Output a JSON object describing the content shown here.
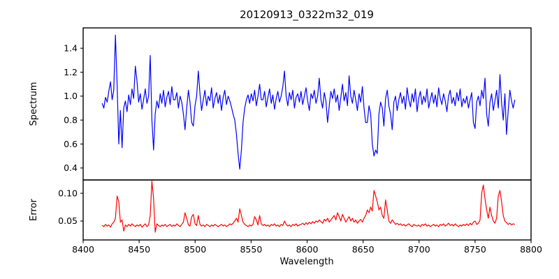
{
  "figure": {
    "title": "20120913_0322m32_019",
    "background": "#ffffff",
    "frame_color": "#000000"
  },
  "chart_data": {
    "type": "line",
    "title": "20120913_0322m32_019",
    "x_label": "Wavelength",
    "x_lim": [
      8400,
      8800
    ],
    "x_ticks": [
      8400,
      8450,
      8500,
      8550,
      8600,
      8650,
      8700,
      8750,
      8800
    ],
    "x_tick_labels": [
      "8400",
      "8450",
      "8500",
      "8550",
      "8600",
      "8650",
      "8700",
      "8750",
      "8800"
    ],
    "x_start": 8417,
    "x_step": 1.48,
    "grid": false,
    "legend": false,
    "panels": [
      {
        "name": "spectrum",
        "y_label": "Spectrum",
        "y_lim": [
          0.3,
          1.57
        ],
        "y_ticks": [
          0.4,
          0.6,
          0.8,
          1.0,
          1.2,
          1.4
        ],
        "y_tick_labels": [
          "0.4",
          "0.6",
          "0.8",
          "1.0",
          "1.2",
          "1.4"
        ],
        "color": "#0000ff",
        "values": [
          0.94,
          0.9,
          0.99,
          0.95,
          1.04,
          1.12,
          0.97,
          1.05,
          1.51,
          1.1,
          0.6,
          0.88,
          0.57,
          0.9,
          0.96,
          0.87,
          1.01,
          0.93,
          1.06,
          0.98,
          1.25,
          1.13,
          0.95,
          1.02,
          0.89,
          0.97,
          1.06,
          0.94,
          1.0,
          1.34,
          0.8,
          0.55,
          0.85,
          0.96,
          0.9,
          1.02,
          0.94,
          1.05,
          0.91,
          0.99,
          1.04,
          0.93,
          1.08,
          0.97,
          0.97,
          1.03,
          0.9,
          1.0,
          0.95,
          0.85,
          0.72,
          0.9,
          1.05,
          0.95,
          0.78,
          0.75,
          0.92,
          1.0,
          1.21,
          1.02,
          0.88,
          0.97,
          1.05,
          0.92,
          1.0,
          0.96,
          1.07,
          0.9,
          0.98,
          1.03,
          0.94,
          1.01,
          0.88,
          0.99,
          1.05,
          0.93,
          1.0,
          0.96,
          0.91,
          0.85,
          0.8,
          0.68,
          0.52,
          0.39,
          0.55,
          0.78,
          0.9,
          0.97,
          1.01,
          0.94,
          1.02,
          0.96,
          1.05,
          0.92,
          1.0,
          1.1,
          0.97,
          0.97,
          1.04,
          0.91,
          0.99,
          1.06,
          0.94,
          1.01,
          0.89,
          0.98,
          1.04,
          0.95,
          1.0,
          1.08,
          1.21,
          1.0,
          0.92,
          1.03,
          0.97,
          1.05,
          0.9,
          0.99,
          1.02,
          0.95,
          1.04,
          0.93,
          1.0,
          1.07,
          0.96,
          0.88,
          1.02,
          0.98,
          1.05,
          0.94,
          1.0,
          1.15,
          0.97,
          0.9,
          1.03,
          0.96,
          0.78,
          0.92,
          1.04,
          0.98,
          1.06,
          0.95,
          1.01,
          0.88,
          0.99,
          1.1,
          0.96,
          1.03,
          0.92,
          1.17,
          1.0,
          0.94,
          1.05,
          0.97,
          0.88,
          1.02,
          0.95,
          1.08,
          0.9,
          0.78,
          0.78,
          0.92,
          0.85,
          0.6,
          0.5,
          0.55,
          0.52,
          0.85,
          0.95,
          0.9,
          0.75,
          0.98,
          1.05,
          0.92,
          0.85,
          0.72,
          0.95,
          1.0,
          0.88,
          0.97,
          1.03,
          0.94,
          1.0,
          0.89,
          1.07,
          0.97,
          0.91,
          1.02,
          0.95,
          1.06,
          0.87,
          0.98,
          1.04,
          0.93,
          1.0,
          0.95,
          1.06,
          0.9,
          0.97,
          1.03,
          0.94,
          1.01,
          0.91,
          1.07,
          0.98,
          0.93,
          1.02,
          0.96,
          0.87,
          1.0,
          1.05,
          0.94,
          0.99,
          0.92,
          1.03,
          0.96,
          1.06,
          0.91,
          0.98,
          0.94,
          1.0,
          0.9,
          0.97,
          1.03,
          0.78,
          0.73,
          0.95,
          1.0,
          0.92,
          1.05,
          0.98,
          1.15,
          0.85,
          0.75,
          0.95,
          1.02,
          0.88,
          0.96,
          1.05,
          0.9,
          1.18,
          0.95,
          0.8,
          1.02,
          0.68,
          0.88,
          1.05,
          0.96,
          0.9,
          0.97
        ]
      },
      {
        "name": "error",
        "y_label": "Error",
        "y_lim": [
          0.016,
          0.124
        ],
        "y_ticks": [
          0.05,
          0.1
        ],
        "y_tick_labels": [
          "0.05",
          "0.10"
        ],
        "color": "#ff0000",
        "values": [
          0.042,
          0.04,
          0.044,
          0.041,
          0.043,
          0.039,
          0.045,
          0.048,
          0.055,
          0.095,
          0.085,
          0.048,
          0.052,
          0.032,
          0.043,
          0.04,
          0.044,
          0.041,
          0.045,
          0.042,
          0.04,
          0.043,
          0.041,
          0.044,
          0.039,
          0.042,
          0.045,
          0.04,
          0.043,
          0.06,
          0.122,
          0.09,
          0.03,
          0.045,
          0.042,
          0.04,
          0.043,
          0.041,
          0.044,
          0.04,
          0.042,
          0.044,
          0.04,
          0.043,
          0.041,
          0.045,
          0.042,
          0.04,
          0.044,
          0.048,
          0.065,
          0.055,
          0.043,
          0.041,
          0.058,
          0.062,
          0.045,
          0.042,
          0.06,
          0.044,
          0.041,
          0.043,
          0.04,
          0.044,
          0.042,
          0.04,
          0.043,
          0.041,
          0.044,
          0.042,
          0.04,
          0.042,
          0.044,
          0.041,
          0.043,
          0.04,
          0.042,
          0.045,
          0.043,
          0.046,
          0.05,
          0.055,
          0.048,
          0.072,
          0.06,
          0.048,
          0.044,
          0.042,
          0.04,
          0.043,
          0.041,
          0.044,
          0.058,
          0.052,
          0.043,
          0.06,
          0.045,
          0.042,
          0.044,
          0.041,
          0.043,
          0.04,
          0.044,
          0.042,
          0.045,
          0.041,
          0.043,
          0.04,
          0.044,
          0.042,
          0.05,
          0.044,
          0.041,
          0.043,
          0.04,
          0.044,
          0.042,
          0.045,
          0.041,
          0.043,
          0.044,
          0.046,
          0.043,
          0.047,
          0.044,
          0.048,
          0.045,
          0.049,
          0.046,
          0.05,
          0.048,
          0.052,
          0.049,
          0.046,
          0.053,
          0.05,
          0.055,
          0.048,
          0.052,
          0.056,
          0.06,
          0.052,
          0.065,
          0.058,
          0.05,
          0.062,
          0.055,
          0.048,
          0.053,
          0.058,
          0.05,
          0.055,
          0.048,
          0.052,
          0.046,
          0.05,
          0.053,
          0.048,
          0.055,
          0.06,
          0.07,
          0.065,
          0.075,
          0.068,
          0.105,
          0.095,
          0.085,
          0.07,
          0.075,
          0.06,
          0.055,
          0.088,
          0.07,
          0.05,
          0.046,
          0.052,
          0.048,
          0.044,
          0.046,
          0.043,
          0.045,
          0.042,
          0.044,
          0.041,
          0.043,
          0.045,
          0.042,
          0.04,
          0.044,
          0.042,
          0.041,
          0.043,
          0.04,
          0.044,
          0.042,
          0.045,
          0.041,
          0.043,
          0.04,
          0.042,
          0.044,
          0.041,
          0.043,
          0.04,
          0.044,
          0.042,
          0.045,
          0.041,
          0.043,
          0.046,
          0.042,
          0.044,
          0.041,
          0.045,
          0.042,
          0.04,
          0.043,
          0.041,
          0.044,
          0.042,
          0.045,
          0.042,
          0.046,
          0.043,
          0.048,
          0.05,
          0.044,
          0.046,
          0.052,
          0.1,
          0.115,
          0.09,
          0.07,
          0.055,
          0.075,
          0.06,
          0.05,
          0.046,
          0.055,
          0.095,
          0.105,
          0.085,
          0.06,
          0.05,
          0.047,
          0.044,
          0.046,
          0.043,
          0.045,
          0.044
        ]
      }
    ]
  }
}
